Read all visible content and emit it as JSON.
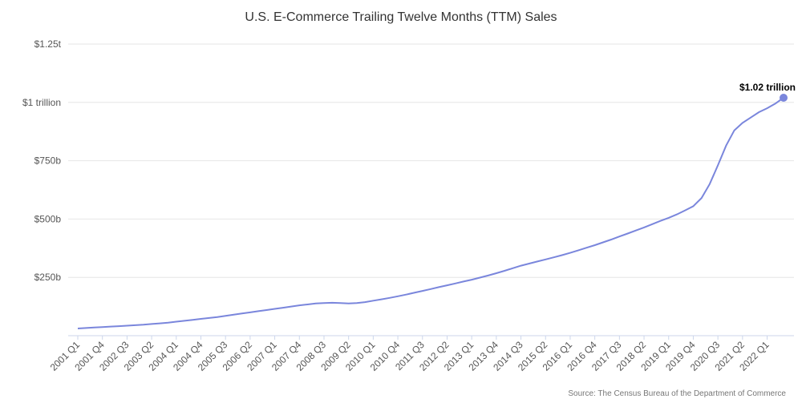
{
  "chart_data": {
    "type": "line",
    "title": "U.S. E-Commerce Trailing Twelve Months (TTM) Sales",
    "source": "Source: The Census Bureau of the Department of Commerce",
    "annotation": "$1.02 trillion",
    "categories": [
      "2001 Q1",
      null,
      null,
      "2001 Q4",
      null,
      null,
      "2002 Q3",
      null,
      null,
      "2003 Q2",
      null,
      null,
      "2004 Q1",
      null,
      null,
      "2004 Q4",
      null,
      null,
      "2005 Q3",
      null,
      null,
      "2006 Q2",
      null,
      null,
      "2007 Q1",
      null,
      null,
      "2007 Q4",
      null,
      null,
      "2008 Q3",
      null,
      null,
      "2009 Q2",
      null,
      null,
      "2010 Q1",
      null,
      null,
      "2010 Q4",
      null,
      null,
      "2011 Q3",
      null,
      null,
      "2012 Q2",
      null,
      null,
      "2013 Q1",
      null,
      null,
      "2013 Q4",
      null,
      null,
      "2014 Q3",
      null,
      null,
      "2015 Q2",
      null,
      null,
      "2016 Q1",
      null,
      null,
      "2016 Q4",
      null,
      null,
      "2017 Q3",
      null,
      null,
      "2018 Q2",
      null,
      null,
      "2019 Q1",
      null,
      null,
      "2019 Q4",
      null,
      null,
      "2020 Q3",
      null,
      null,
      "2021 Q2",
      null,
      null,
      "2022 Q1",
      null,
      null
    ],
    "series": [
      {
        "color": "#7a86dc",
        "values": [
          31,
          33,
          35,
          37,
          39,
          41,
          43,
          45,
          47,
          50,
          53,
          56,
          60,
          64,
          68,
          72,
          76,
          80,
          85,
          90,
          95,
          100,
          105,
          110,
          115,
          120,
          125,
          130,
          134,
          138,
          140,
          141,
          140,
          138,
          140,
          144,
          150,
          156,
          162,
          169,
          176,
          184,
          192,
          200,
          208,
          216,
          224,
          232,
          240,
          249,
          258,
          268,
          278,
          289,
          300,
          309,
          318,
          327,
          336,
          345,
          355,
          366,
          377,
          388,
          400,
          412,
          425,
          438,
          451,
          464,
          478,
          492,
          505,
          520,
          537,
          555,
          590,
          650,
          730,
          815,
          880,
          912,
          935,
          958,
          975,
          995,
          1020
        ]
      }
    ],
    "ylim": [
      0,
      1250
    ],
    "yticks": [
      {
        "value": 250,
        "label": "$250b"
      },
      {
        "value": 500,
        "label": "$500b"
      },
      {
        "value": 750,
        "label": "$750b"
      },
      {
        "value": 1000,
        "label": "$1 trillion"
      },
      {
        "value": 1250,
        "label": "$1.25t"
      }
    ],
    "grid": true
  }
}
